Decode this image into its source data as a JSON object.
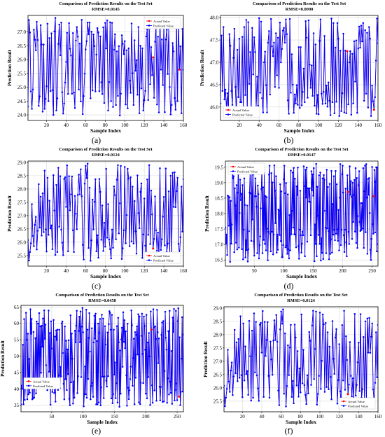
{
  "chart_data": [
    {
      "type": "line",
      "panel_label": "(a)",
      "title": "Comparison of Prediction Results on the Test Set",
      "subtitle": "RMSE=0.0145",
      "xlabel": "Sample Index",
      "ylabel": "Prediction Result",
      "xlim": [
        1,
        160
      ],
      "ylim": [
        23.8,
        27.6
      ],
      "xticks": [
        20,
        40,
        60,
        80,
        100,
        120,
        140,
        160
      ],
      "yticks": [
        24.0,
        24.5,
        25.0,
        25.5,
        26.0,
        26.5,
        27.0
      ],
      "legend_position": "top-right",
      "legend": [
        "Actual Value",
        "Predicted Value"
      ],
      "n_points": 160,
      "seed": 11,
      "series": [
        {
          "name": "Actual Value",
          "color": "#ff0000",
          "values": []
        },
        {
          "name": "Predicted Value",
          "color": "#0000ff",
          "values": []
        }
      ]
    },
    {
      "type": "line",
      "panel_label": "(b)",
      "title": "Comparison of Prediction Results on the Test Set",
      "subtitle": "RMSE=0.0090",
      "xlabel": "Sample Index",
      "ylabel": "Prediction Result",
      "xlim": [
        1,
        160
      ],
      "ylim": [
        45.7,
        48.05
      ],
      "xticks": [
        20,
        40,
        60,
        80,
        100,
        120,
        140,
        160
      ],
      "yticks": [
        46.0,
        46.5,
        47.0,
        47.5,
        48.0
      ],
      "legend_position": "bottom-left",
      "legend": [
        "Actual Value",
        "Predicted Value"
      ],
      "n_points": 160,
      "seed": 23,
      "series": [
        {
          "name": "Actual Value",
          "color": "#ff0000",
          "values": []
        },
        {
          "name": "Predicted Value",
          "color": "#0000ff",
          "values": []
        }
      ]
    },
    {
      "type": "line",
      "panel_label": "(c)",
      "title": "Comparison of Prediction Results on the Test Set",
      "subtitle": "RMSE=0.0124",
      "xlabel": "Sample Index",
      "ylabel": "Prediction Result",
      "xlim": [
        1,
        160
      ],
      "ylim": [
        25.1,
        29.05
      ],
      "xticks": [
        20,
        40,
        60,
        80,
        100,
        120,
        140,
        160
      ],
      "yticks": [
        25.5,
        26.0,
        26.5,
        27.0,
        27.5,
        28.0,
        28.5,
        29.0
      ],
      "legend_position": "bottom-right",
      "legend": [
        "Actual Value",
        "Predicted Value"
      ],
      "n_points": 160,
      "seed": 37,
      "series": [
        {
          "name": "Actual Value",
          "color": "#ff0000",
          "values": []
        },
        {
          "name": "Predicted Value",
          "color": "#0000ff",
          "values": []
        }
      ]
    },
    {
      "type": "line",
      "panel_label": "(d)",
      "title": "Comparison of Prediction Results on the Test Set",
      "subtitle": "RMSE=0.0147",
      "xlabel": "Sample Index",
      "ylabel": "Prediction Result",
      "xlim": [
        1,
        260
      ],
      "ylim": [
        16.3,
        19.7
      ],
      "xticks": [
        50,
        100,
        150,
        200,
        250
      ],
      "yticks": [
        16.5,
        17.0,
        17.5,
        18.0,
        18.5,
        19.0,
        19.5
      ],
      "legend_position": "top-left",
      "legend": [
        "Actual Value",
        "Predicted Value"
      ],
      "n_points": 260,
      "seed": 41,
      "series": [
        {
          "name": "Actual Value",
          "color": "#ff0000",
          "values": []
        },
        {
          "name": "Predicted Value",
          "color": "#0000ff",
          "values": []
        }
      ]
    },
    {
      "type": "line",
      "panel_label": "(e)",
      "title": "Comparison of Prediction Results on the Test Set",
      "subtitle": "RMSE=0.0458",
      "xlabel": "Sample Index",
      "ylabel": "Prediction Result",
      "xlim": [
        1,
        260
      ],
      "ylim": [
        33,
        65.5
      ],
      "xticks": [
        50,
        100,
        150,
        200,
        250
      ],
      "yticks": [
        35,
        40,
        45,
        50,
        55,
        60,
        65
      ],
      "legend_position": "left",
      "legend": [
        "Actual Value",
        "Predicted Value"
      ],
      "n_points": 260,
      "seed": 53,
      "series": [
        {
          "name": "Actual Value",
          "color": "#ff0000",
          "values": []
        },
        {
          "name": "Predicted Value",
          "color": "#0000ff",
          "values": []
        }
      ]
    },
    {
      "type": "line",
      "panel_label": "(f)",
      "title": "Comparison of Prediction Results on the Test Set",
      "subtitle": "RMSE=0.0124",
      "xlabel": "Sample Index",
      "ylabel": "Prediction Result",
      "xlim": [
        1,
        160
      ],
      "ylim": [
        25.1,
        29.05
      ],
      "xticks": [
        20,
        40,
        60,
        80,
        100,
        120,
        140,
        160
      ],
      "yticks": [
        25.5,
        26.0,
        26.5,
        27.0,
        27.5,
        28.0,
        28.5,
        29.0
      ],
      "legend_position": "bottom-right",
      "legend": [
        "Actual Value",
        "Predicted Value"
      ],
      "n_points": 160,
      "seed": 37,
      "series": [
        {
          "name": "Actual Value",
          "color": "#ff0000",
          "values": []
        },
        {
          "name": "Predicted Value",
          "color": "#0000ff",
          "values": []
        }
      ]
    }
  ]
}
